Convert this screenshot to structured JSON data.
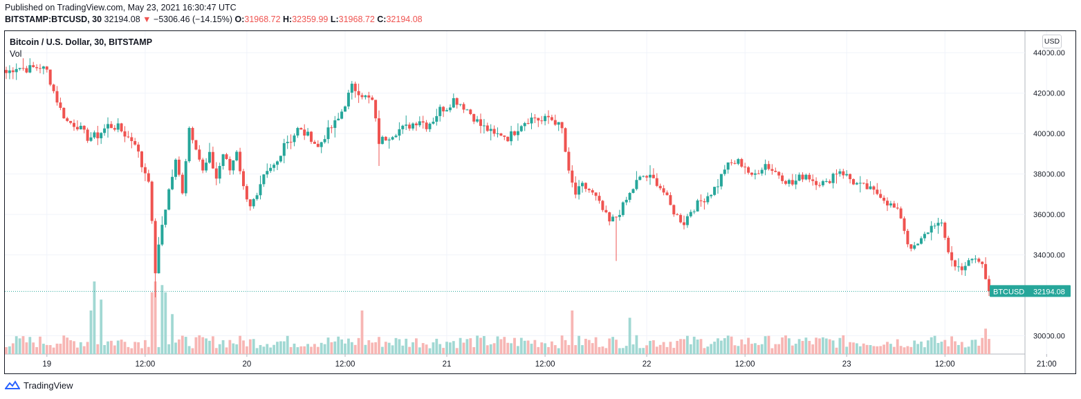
{
  "header": {
    "published": "Published on TradingView.com, May 23, 2021 16:30:47 UTC",
    "symbol": "BITSTAMP:BTCUSD, 30",
    "last": "32194.08",
    "change": "−5306.46 (−14.15%)",
    "o_label": "O:",
    "o_value": "31968.72",
    "h_label": "H:",
    "h_value": "32359.99",
    "l_label": "L:",
    "l_value": "31968.72",
    "c_label": "C:",
    "c_value": "32194.08"
  },
  "legend": {
    "title": "Bitcoin / U.S. Dollar, 30, BITSTAMP",
    "volume": "Vol"
  },
  "currency": "USD",
  "footer": {
    "brand": "TradingView"
  },
  "colors": {
    "up": "#26a69a",
    "down": "#ef5350",
    "up_vol": "#a1d8d3",
    "down_vol": "#f7b6b4",
    "grid": "#f0f3fa"
  },
  "chart_data": {
    "type": "candlestick",
    "title": "Bitcoin / U.S. Dollar, 30, BITSTAMP",
    "interval": "30 minutes",
    "y_range": [
      29300,
      45000
    ],
    "y_ticks": [
      "44000.00",
      "42000.00",
      "40000.00",
      "38000.00",
      "36000.00",
      "34000.00",
      "30000.00"
    ],
    "y_tick_values": [
      44000,
      42000,
      40000,
      38000,
      36000,
      34000,
      30000
    ],
    "x_ticks": [
      "19",
      "12:00",
      "20",
      "12:00",
      "21",
      "12:00",
      "22",
      "12:00",
      "23",
      "12:00",
      "21:00"
    ],
    "x_tick_slots": [
      12,
      41,
      71,
      100,
      130,
      159,
      189,
      218,
      248,
      277,
      307
    ],
    "last_price_label": "BTCUSD",
    "last_price": "32194.08",
    "last_price_value": 32194.08,
    "anchors": [
      [
        0,
        43000
      ],
      [
        3,
        43300
      ],
      [
        6,
        43200
      ],
      [
        10,
        43300
      ],
      [
        12,
        43100
      ],
      [
        14,
        42100
      ],
      [
        16,
        41200
      ],
      [
        18,
        40600
      ],
      [
        21,
        40400
      ],
      [
        24,
        39800
      ],
      [
        27,
        39900
      ],
      [
        30,
        40400
      ],
      [
        33,
        40300
      ],
      [
        36,
        39800
      ],
      [
        38,
        39600
      ],
      [
        40,
        38400
      ],
      [
        42,
        37800
      ],
      [
        44,
        33200
      ],
      [
        46,
        35500
      ],
      [
        48,
        37200
      ],
      [
        50,
        38600
      ],
      [
        52,
        37200
      ],
      [
        54,
        40300
      ],
      [
        56,
        39400
      ],
      [
        58,
        38100
      ],
      [
        60,
        38900
      ],
      [
        62,
        37800
      ],
      [
        64,
        39000
      ],
      [
        66,
        38200
      ],
      [
        68,
        39200
      ],
      [
        70,
        37300
      ],
      [
        72,
        36500
      ],
      [
        74,
        36800
      ],
      [
        76,
        37800
      ],
      [
        78,
        38200
      ],
      [
        80,
        38600
      ],
      [
        82,
        39600
      ],
      [
        84,
        39700
      ],
      [
        86,
        40200
      ],
      [
        88,
        40000
      ],
      [
        90,
        39800
      ],
      [
        92,
        39300
      ],
      [
        94,
        39900
      ],
      [
        96,
        40300
      ],
      [
        98,
        40700
      ],
      [
        100,
        41500
      ],
      [
        102,
        42300
      ],
      [
        104,
        42100
      ],
      [
        106,
        41800
      ],
      [
        108,
        41600
      ],
      [
        110,
        39600
      ],
      [
        112,
        39800
      ],
      [
        114,
        40000
      ],
      [
        116,
        40200
      ],
      [
        118,
        40300
      ],
      [
        120,
        40500
      ],
      [
        122,
        40700
      ],
      [
        124,
        40400
      ],
      [
        126,
        40700
      ],
      [
        128,
        41200
      ],
      [
        130,
        41300
      ],
      [
        132,
        41700
      ],
      [
        134,
        41500
      ],
      [
        136,
        41200
      ],
      [
        138,
        40800
      ],
      [
        140,
        40400
      ],
      [
        142,
        40200
      ],
      [
        144,
        39900
      ],
      [
        146,
        40000
      ],
      [
        148,
        39800
      ],
      [
        150,
        40100
      ],
      [
        152,
        40500
      ],
      [
        154,
        40700
      ],
      [
        156,
        40800
      ],
      [
        158,
        40600
      ],
      [
        160,
        40800
      ],
      [
        162,
        40600
      ],
      [
        164,
        40200
      ],
      [
        166,
        38000
      ],
      [
        168,
        37000
      ],
      [
        170,
        37400
      ],
      [
        172,
        37200
      ],
      [
        174,
        36800
      ],
      [
        176,
        36200
      ],
      [
        178,
        35600
      ],
      [
        180,
        35900
      ],
      [
        182,
        36400
      ],
      [
        184,
        37000
      ],
      [
        186,
        37600
      ],
      [
        188,
        37900
      ],
      [
        190,
        37800
      ],
      [
        192,
        37600
      ],
      [
        194,
        37100
      ],
      [
        196,
        36400
      ],
      [
        198,
        35900
      ],
      [
        200,
        35600
      ],
      [
        202,
        36200
      ],
      [
        204,
        36500
      ],
      [
        206,
        36800
      ],
      [
        208,
        37100
      ],
      [
        210,
        37500
      ],
      [
        212,
        38300
      ],
      [
        214,
        38500
      ],
      [
        216,
        38600
      ],
      [
        218,
        38400
      ],
      [
        220,
        37800
      ],
      [
        222,
        38200
      ],
      [
        224,
        38500
      ],
      [
        226,
        38200
      ],
      [
        228,
        38000
      ],
      [
        230,
        37700
      ],
      [
        232,
        37500
      ],
      [
        234,
        37800
      ],
      [
        236,
        38000
      ],
      [
        238,
        37700
      ],
      [
        240,
        37600
      ],
      [
        242,
        37500
      ],
      [
        244,
        38000
      ],
      [
        246,
        38200
      ],
      [
        248,
        37900
      ],
      [
        250,
        37600
      ],
      [
        252,
        37400
      ],
      [
        254,
        37300
      ],
      [
        256,
        37100
      ],
      [
        258,
        37000
      ],
      [
        260,
        36600
      ],
      [
        262,
        36300
      ],
      [
        264,
        35900
      ],
      [
        266,
        34600
      ],
      [
        268,
        34300
      ],
      [
        270,
        34700
      ],
      [
        272,
        35200
      ],
      [
        274,
        35600
      ],
      [
        276,
        35400
      ],
      [
        278,
        34200
      ],
      [
        280,
        33400
      ],
      [
        282,
        33400
      ],
      [
        284,
        33600
      ],
      [
        286,
        33800
      ],
      [
        288,
        33500
      ],
      [
        290,
        32200
      ]
    ],
    "volume_spikes": [
      [
        25,
        0.6
      ],
      [
        26,
        1.0
      ],
      [
        28,
        0.75
      ],
      [
        43,
        0.85
      ],
      [
        44,
        1.0
      ],
      [
        46,
        0.95
      ],
      [
        47,
        0.85
      ],
      [
        49,
        0.55
      ],
      [
        105,
        0.6
      ],
      [
        167,
        0.6
      ],
      [
        184,
        0.5
      ],
      [
        289,
        0.35
      ]
    ]
  }
}
